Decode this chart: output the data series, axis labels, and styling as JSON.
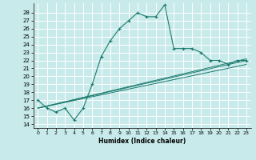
{
  "xlabel": "Humidex (Indice chaleur)",
  "bg_color": "#c8eaea",
  "grid_color": "#ffffff",
  "line_color": "#1a7a6e",
  "xlim": [
    -0.5,
    23.5
  ],
  "ylim": [
    13.5,
    29.2
  ],
  "xticks": [
    0,
    1,
    2,
    3,
    4,
    5,
    6,
    7,
    8,
    9,
    10,
    11,
    12,
    13,
    14,
    15,
    16,
    17,
    18,
    19,
    20,
    21,
    22,
    23
  ],
  "yticks": [
    14,
    15,
    16,
    17,
    18,
    19,
    20,
    21,
    22,
    23,
    24,
    25,
    26,
    27,
    28
  ],
  "line1_x": [
    0,
    1,
    2,
    3,
    4,
    5,
    6,
    7,
    8,
    9,
    10,
    11,
    12,
    13,
    14,
    15,
    16,
    17,
    18,
    19,
    20,
    21,
    22,
    23
  ],
  "line1_y": [
    17,
    16,
    15.5,
    16,
    14.5,
    16,
    19,
    22.5,
    24.5,
    26,
    27,
    28,
    27.5,
    27.5,
    29,
    23.5,
    23.5,
    23.5,
    23,
    22,
    22,
    21.5,
    22,
    22
  ],
  "line2_x": [
    0,
    23
  ],
  "line2_y": [
    16,
    22
  ],
  "line3_x": [
    0,
    23
  ],
  "line3_y": [
    16,
    21.5
  ],
  "line4_x": [
    0,
    23
  ],
  "line4_y": [
    16,
    22.2
  ]
}
